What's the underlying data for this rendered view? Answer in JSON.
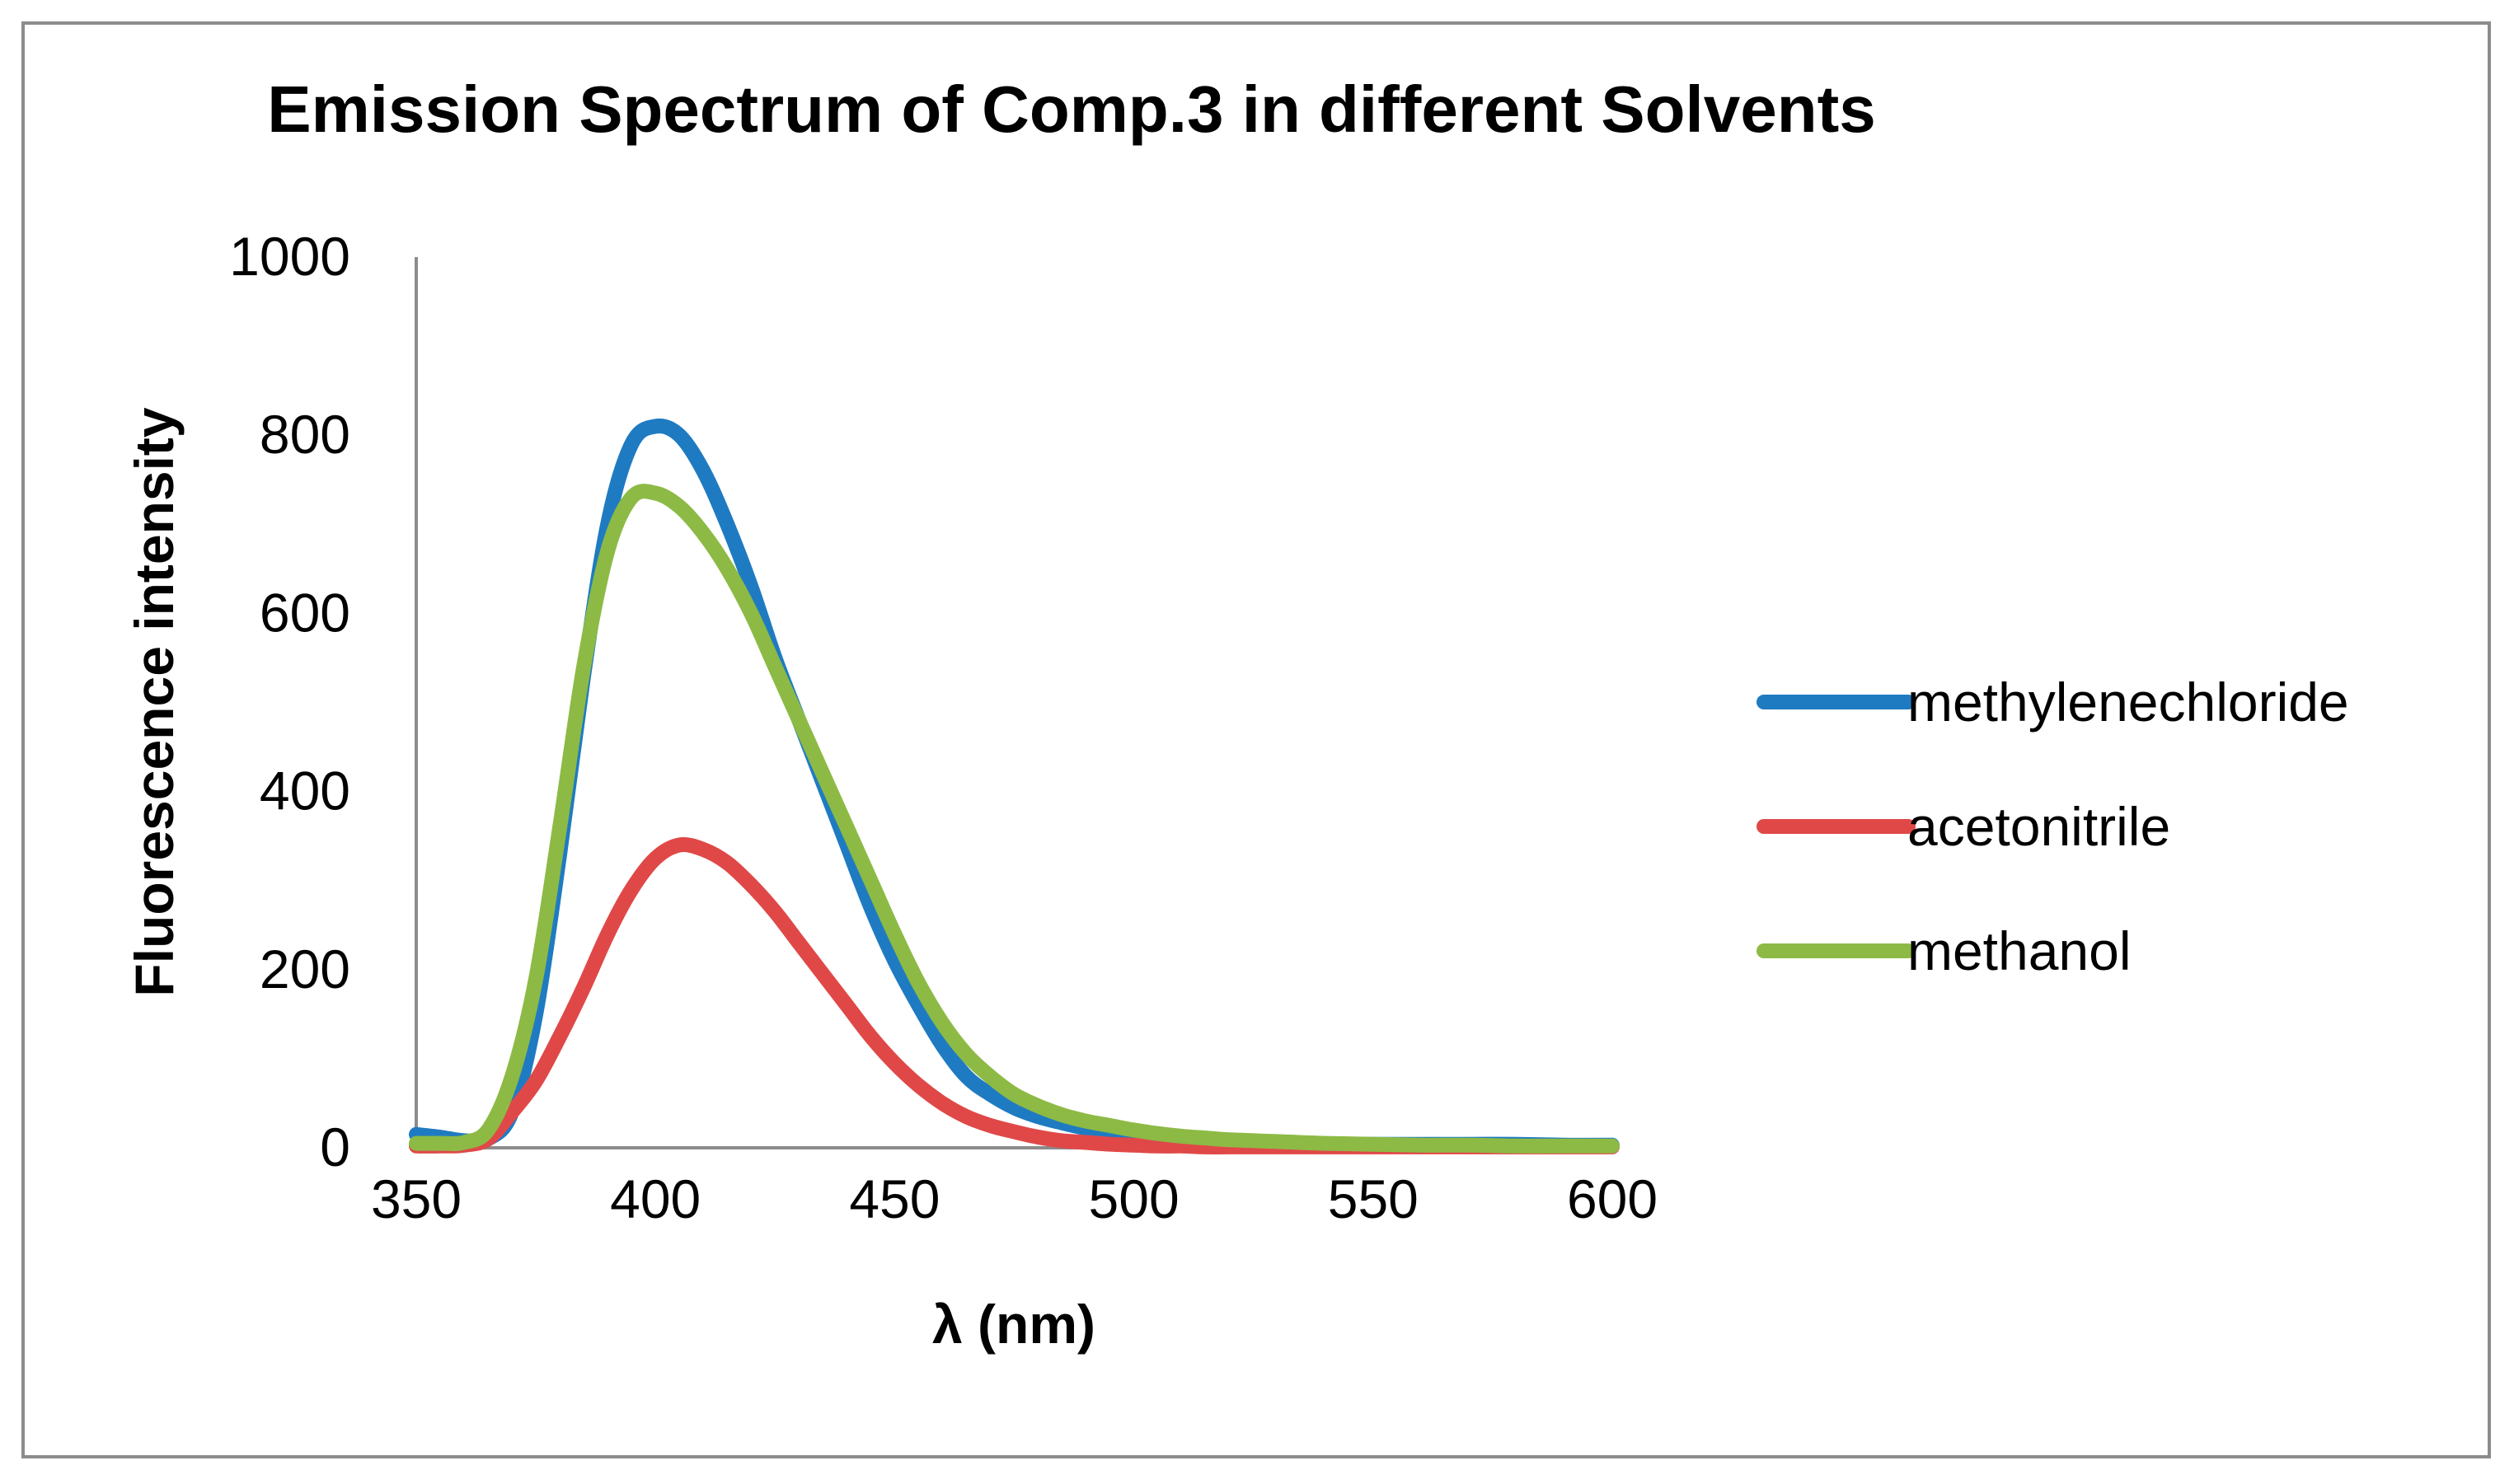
{
  "chart_data": {
    "type": "line",
    "title": "Emission Spectrum of Comp.3 in different Solvents",
    "xlabel": "λ (nm)",
    "ylabel": "Fluorescence intensity",
    "xlim": [
      350,
      600
    ],
    "ylim": [
      0,
      1000
    ],
    "x_ticks": [
      "350",
      "400",
      "450",
      "500",
      "550",
      "600"
    ],
    "y_ticks": [
      "0",
      "200",
      "400",
      "600",
      "800",
      "1000"
    ],
    "grid": false,
    "legend_position": "right",
    "x": [
      350,
      355,
      360,
      365,
      370,
      375,
      380,
      385,
      390,
      395,
      400,
      405,
      410,
      415,
      420,
      425,
      430,
      435,
      440,
      445,
      450,
      455,
      460,
      465,
      470,
      475,
      480,
      485,
      490,
      495,
      500,
      505,
      510,
      515,
      520,
      530,
      540,
      550,
      560,
      570,
      580,
      590,
      600
    ],
    "series": [
      {
        "name": "methylenechloride",
        "color": "#1f7bc1",
        "values": [
          15,
          12,
          8,
          10,
          40,
          150,
          330,
          530,
          700,
          790,
          810,
          800,
          760,
          700,
          630,
          550,
          480,
          410,
          340,
          270,
          210,
          160,
          115,
          80,
          60,
          45,
          35,
          28,
          22,
          18,
          14,
          11,
          9,
          7,
          6,
          5,
          4,
          4,
          4,
          4,
          4,
          3,
          3
        ]
      },
      {
        "name": "acetonitrile",
        "color": "#e04848",
        "values": [
          2,
          2,
          3,
          10,
          40,
          75,
          125,
          180,
          240,
          290,
          325,
          340,
          335,
          320,
          295,
          265,
          230,
          195,
          160,
          125,
          95,
          70,
          50,
          35,
          25,
          18,
          12,
          8,
          6,
          4,
          3,
          2,
          2,
          1,
          1,
          1,
          1,
          1,
          1,
          1,
          1,
          1,
          1
        ]
      },
      {
        "name": "methanol",
        "color": "#8dba45",
        "values": [
          5,
          5,
          6,
          20,
          80,
          190,
          360,
          540,
          670,
          730,
          735,
          720,
          690,
          650,
          600,
          540,
          480,
          420,
          360,
          300,
          240,
          185,
          140,
          105,
          80,
          60,
          47,
          37,
          30,
          25,
          20,
          16,
          13,
          11,
          9,
          7,
          5,
          4,
          3,
          3,
          2,
          2,
          2
        ]
      }
    ]
  }
}
